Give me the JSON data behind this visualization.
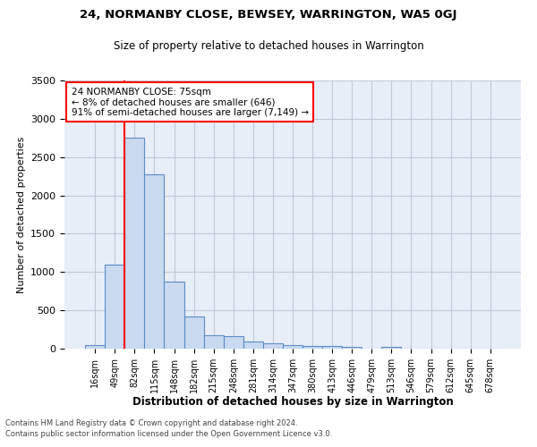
{
  "title1": "24, NORMANBY CLOSE, BEWSEY, WARRINGTON, WA5 0GJ",
  "title2": "Size of property relative to detached houses in Warrington",
  "xlabel": "Distribution of detached houses by size in Warrington",
  "ylabel": "Number of detached properties",
  "footer1": "Contains HM Land Registry data © Crown copyright and database right 2024.",
  "footer2": "Contains public sector information licensed under the Open Government Licence v3.0.",
  "categories": [
    "16sqm",
    "49sqm",
    "82sqm",
    "115sqm",
    "148sqm",
    "182sqm",
    "215sqm",
    "248sqm",
    "281sqm",
    "314sqm",
    "347sqm",
    "380sqm",
    "413sqm",
    "446sqm",
    "479sqm",
    "513sqm",
    "546sqm",
    "579sqm",
    "612sqm",
    "645sqm",
    "678sqm"
  ],
  "values": [
    50,
    1100,
    2750,
    2270,
    870,
    415,
    170,
    160,
    90,
    65,
    50,
    40,
    30,
    20,
    0,
    25,
    0,
    0,
    0,
    0,
    0
  ],
  "bar_color": "#c9d9f0",
  "bar_edge_color": "#5b8cc8",
  "grid_color": "#c0c8d8",
  "background_color": "#e8eef8",
  "annotation_line1": "24 NORMANBY CLOSE: 75sqm",
  "annotation_line2": "← 8% of detached houses are smaller (646)",
  "annotation_line3": "91% of semi-detached houses are larger (7,149) →",
  "annotation_box_color": "white",
  "annotation_box_edge_color": "red",
  "vline_x_index": 1.5,
  "vline_color": "red",
  "ylim": [
    0,
    3500
  ],
  "yticks": [
    0,
    500,
    1000,
    1500,
    2000,
    2500,
    3000,
    3500
  ]
}
